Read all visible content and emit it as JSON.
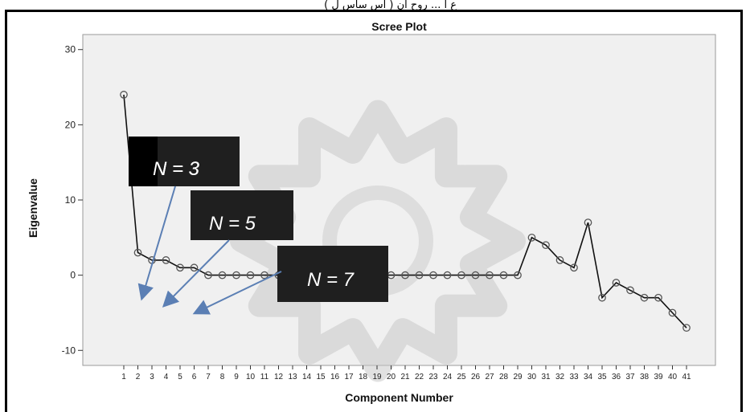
{
  "caption": "ع ا ... روح ان ( اس ساس ل )",
  "chart_data": {
    "type": "line",
    "title": "Scree Plot",
    "xlabel": "Component Number",
    "ylabel": "Eigenvalue",
    "ylim": [
      -12,
      32
    ],
    "yticks": [
      -10,
      0,
      10,
      20,
      30
    ],
    "grid": false,
    "x": [
      1,
      2,
      3,
      4,
      5,
      6,
      7,
      8,
      9,
      10,
      11,
      12,
      13,
      14,
      15,
      16,
      17,
      18,
      19,
      20,
      21,
      22,
      23,
      24,
      25,
      26,
      27,
      28,
      29,
      30,
      31,
      32,
      33,
      34,
      35,
      36,
      37,
      38,
      39,
      40,
      41
    ],
    "series": [
      {
        "values": [
          24,
          3,
          2,
          2,
          1,
          1,
          0,
          0,
          0,
          0,
          0,
          0,
          0,
          0,
          0,
          0,
          0,
          0,
          0,
          0,
          0,
          0,
          0,
          0,
          0,
          0,
          0,
          0,
          0,
          5,
          4,
          2,
          1,
          7,
          -3,
          -1,
          -2,
          -3,
          -3,
          -5,
          -7
        ]
      }
    ],
    "annotations": [
      {
        "text": "N = 3",
        "arrow_to": [
          2.3,
          -3
        ]
      },
      {
        "text": "N = 5",
        "arrow_to": [
          3.9,
          -4
        ]
      },
      {
        "text": "N = 7",
        "arrow_to": [
          6.1,
          -5
        ]
      }
    ],
    "colors": {
      "line": "#111111",
      "marker": "#555555",
      "plot_bg": "#f0f0f0",
      "annotation_bg": "#1f1f1f",
      "arrow": "#5b7fb4",
      "watermark": "#c9c9c9"
    }
  }
}
